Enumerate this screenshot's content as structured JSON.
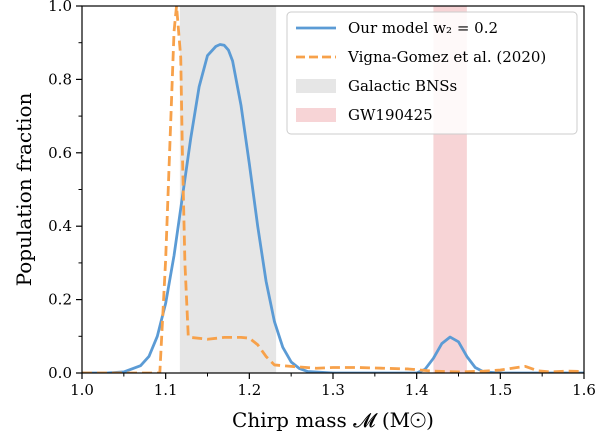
{
  "chart_data": {
    "type": "line",
    "xlabel": "Chirp mass 𝓜 (M☉)",
    "ylabel": "Population fraction",
    "xlim": [
      1.0,
      1.6
    ],
    "ylim": [
      0.0,
      1.0
    ],
    "xticks": [
      "1.0",
      "1.1",
      "1.2",
      "1.3",
      "1.4",
      "1.5",
      "1.6"
    ],
    "yticks": [
      "0.0",
      "0.2",
      "0.4",
      "0.6",
      "0.8",
      "1.0"
    ],
    "grid": false,
    "legend_position": "top-right",
    "bands": [
      {
        "name": "Galactic BNSs",
        "x_range": [
          1.117,
          1.232
        ],
        "color": "#e6e6e6"
      },
      {
        "name": "GW190425",
        "x_range": [
          1.42,
          1.46
        ],
        "color": "#f7d4d6"
      }
    ],
    "series": [
      {
        "name": "Our model w₂ = 0.2",
        "color": "#5b9bd5",
        "style": "solid",
        "points": [
          [
            1.0,
            0.0
          ],
          [
            1.03,
            0.0
          ],
          [
            1.05,
            0.003
          ],
          [
            1.07,
            0.02
          ],
          [
            1.08,
            0.045
          ],
          [
            1.09,
            0.1
          ],
          [
            1.1,
            0.19
          ],
          [
            1.11,
            0.32
          ],
          [
            1.12,
            0.48
          ],
          [
            1.13,
            0.64
          ],
          [
            1.14,
            0.78
          ],
          [
            1.15,
            0.865
          ],
          [
            1.16,
            0.89
          ],
          [
            1.165,
            0.895
          ],
          [
            1.17,
            0.893
          ],
          [
            1.175,
            0.88
          ],
          [
            1.18,
            0.85
          ],
          [
            1.19,
            0.73
          ],
          [
            1.2,
            0.57
          ],
          [
            1.21,
            0.4
          ],
          [
            1.22,
            0.25
          ],
          [
            1.23,
            0.14
          ],
          [
            1.24,
            0.07
          ],
          [
            1.25,
            0.03
          ],
          [
            1.26,
            0.012
          ],
          [
            1.27,
            0.004
          ],
          [
            1.3,
            0.0
          ],
          [
            1.4,
            0.0
          ],
          [
            1.41,
            0.01
          ],
          [
            1.42,
            0.04
          ],
          [
            1.43,
            0.08
          ],
          [
            1.44,
            0.098
          ],
          [
            1.45,
            0.085
          ],
          [
            1.46,
            0.045
          ],
          [
            1.47,
            0.015
          ],
          [
            1.48,
            0.003
          ],
          [
            1.5,
            0.0
          ],
          [
            1.6,
            0.0
          ]
        ]
      },
      {
        "name": "Vigna-Gomez et al. (2020)",
        "color": "#f7a14a",
        "style": "dashed",
        "points": [
          [
            1.0,
            0.0
          ],
          [
            1.09,
            0.0
          ],
          [
            1.093,
            0.0
          ],
          [
            1.1,
            0.31
          ],
          [
            1.105,
            0.62
          ],
          [
            1.11,
            0.93
          ],
          [
            1.113,
            1.0
          ],
          [
            1.118,
            0.86
          ],
          [
            1.12,
            0.6
          ],
          [
            1.123,
            0.3
          ],
          [
            1.127,
            0.1
          ],
          [
            1.13,
            0.097
          ],
          [
            1.15,
            0.092
          ],
          [
            1.17,
            0.097
          ],
          [
            1.19,
            0.097
          ],
          [
            1.2,
            0.095
          ],
          [
            1.21,
            0.077
          ],
          [
            1.22,
            0.045
          ],
          [
            1.23,
            0.022
          ],
          [
            1.25,
            0.018
          ],
          [
            1.28,
            0.013
          ],
          [
            1.3,
            0.015
          ],
          [
            1.33,
            0.015
          ],
          [
            1.36,
            0.013
          ],
          [
            1.39,
            0.011
          ],
          [
            1.42,
            0.005
          ],
          [
            1.45,
            0.003
          ],
          [
            1.48,
            0.005
          ],
          [
            1.5,
            0.008
          ],
          [
            1.52,
            0.015
          ],
          [
            1.53,
            0.018
          ],
          [
            1.545,
            0.006
          ],
          [
            1.56,
            0.003
          ],
          [
            1.58,
            0.005
          ],
          [
            1.6,
            0.004
          ]
        ]
      }
    ]
  }
}
